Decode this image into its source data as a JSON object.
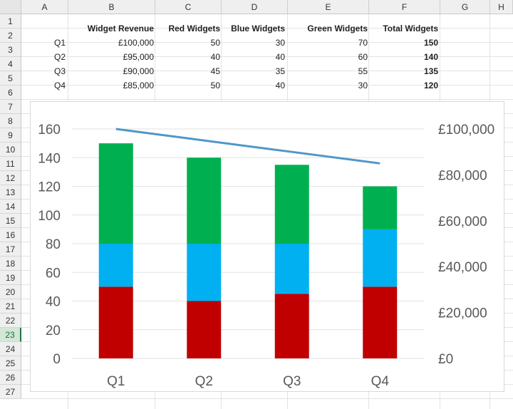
{
  "sheet": {
    "columns": [
      "A",
      "B",
      "C",
      "D",
      "E",
      "F",
      "G",
      "H"
    ],
    "rows": [
      "1",
      "2",
      "3",
      "4",
      "5",
      "6",
      "7",
      "8",
      "9",
      "10",
      "11",
      "12",
      "13",
      "14",
      "15",
      "16",
      "17",
      "18",
      "19",
      "20",
      "21",
      "22",
      "23",
      "24",
      "25",
      "26",
      "27"
    ],
    "selected_row": "23",
    "headers": {
      "widget_revenue": "Widget Revenue",
      "red_widgets": "Red Widgets",
      "blue_widgets": "Blue Widgets",
      "green_widgets": "Green Widgets",
      "total_widgets": "Total Widgets"
    },
    "data_rows": [
      {
        "quarter": "Q1",
        "revenue": "£100,000",
        "red": "50",
        "blue": "30",
        "green": "70",
        "total": "150"
      },
      {
        "quarter": "Q2",
        "revenue": "£95,000",
        "red": "40",
        "blue": "40",
        "green": "60",
        "total": "140"
      },
      {
        "quarter": "Q3",
        "revenue": "£90,000",
        "red": "45",
        "blue": "35",
        "green": "55",
        "total": "135"
      },
      {
        "quarter": "Q4",
        "revenue": "£85,000",
        "red": "50",
        "blue": "40",
        "green": "30",
        "total": "120"
      }
    ]
  },
  "chart_data": {
    "type": "bar",
    "stacked": true,
    "categories": [
      "Q1",
      "Q2",
      "Q3",
      "Q4"
    ],
    "series": [
      {
        "name": "Red Widgets",
        "values": [
          50,
          40,
          45,
          50
        ],
        "color": "#c00000"
      },
      {
        "name": "Blue Widgets",
        "values": [
          30,
          40,
          35,
          40
        ],
        "color": "#00b0f0"
      },
      {
        "name": "Green Widgets",
        "values": [
          70,
          60,
          55,
          30
        ],
        "color": "#00b050"
      }
    ],
    "line_series": {
      "name": "Widget Revenue",
      "values": [
        100000,
        95000,
        90000,
        85000
      ],
      "color": "#4f97c9",
      "axis": "secondary"
    },
    "ylim": [
      0,
      160
    ],
    "yticks": [
      "0",
      "20",
      "40",
      "60",
      "80",
      "100",
      "120",
      "140",
      "160"
    ],
    "y2lim": [
      0,
      100000
    ],
    "y2ticks": [
      "£0",
      "£20,000",
      "£40,000",
      "£60,000",
      "£80,000",
      "£100,000"
    ],
    "grid": true,
    "legend": "none"
  }
}
